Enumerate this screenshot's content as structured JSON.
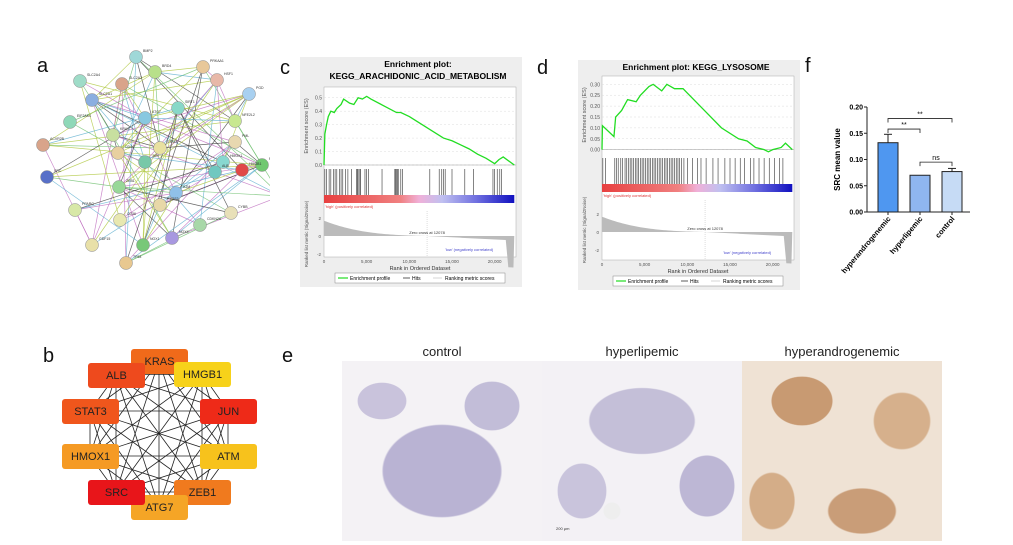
{
  "panel_labels": {
    "a": "a",
    "b": "b",
    "c": "c",
    "d": "d",
    "e": "e",
    "f": "f"
  },
  "network_a": {
    "nodes": [
      {
        "name": "BMP2",
        "color": "#9fd8d8"
      },
      {
        "name": "SLC2A4",
        "color": "#9fdcc8"
      },
      {
        "name": "SLC2A2",
        "color": "#d9a48a"
      },
      {
        "name": "SLC2A1",
        "color": "#8aaee0"
      },
      {
        "name": "EIF2AK4",
        "color": "#8fd8b8"
      },
      {
        "name": "ACVR2B",
        "color": "#d9a48a"
      },
      {
        "name": "KRAS",
        "color": "#c8e0a0"
      },
      {
        "name": "BRD4",
        "color": "#b8e08a"
      },
      {
        "name": "PRKAA1",
        "color": "#e8c89a"
      },
      {
        "name": "HSF1",
        "color": "#e8b8a8"
      },
      {
        "name": "PGD",
        "color": "#a8d0f0"
      },
      {
        "name": "SIRT1",
        "color": "#88d8c8"
      },
      {
        "name": "NFE2L2",
        "color": "#c8e890"
      },
      {
        "name": "PML",
        "color": "#e8d8b0"
      },
      {
        "name": "ATG7",
        "color": "#88c8e0"
      },
      {
        "name": "STAT3",
        "color": "#e8e0a0"
      },
      {
        "name": "HMOX1",
        "color": "#88d8d0"
      },
      {
        "name": "FTL",
        "color": "#70c870"
      },
      {
        "name": "ALOX5",
        "color": "#d8c080"
      },
      {
        "name": "ALB",
        "color": "#70c8c0"
      },
      {
        "name": "HMGB1",
        "color": "#e04848"
      },
      {
        "name": "CD44",
        "color": "#e8d0a0"
      },
      {
        "name": "JUN",
        "color": "#78c8a8"
      },
      {
        "name": "ZEB1",
        "color": "#98d898"
      },
      {
        "name": "SRC",
        "color": "#5870c8"
      },
      {
        "name": "ATM",
        "color": "#90c0e8"
      },
      {
        "name": "CYBB",
        "color": "#e8e0b8"
      },
      {
        "name": "NOX4",
        "color": "#a898e0"
      },
      {
        "name": "NOX1",
        "color": "#78c878"
      },
      {
        "name": "CD36",
        "color": "#e8e8b0"
      },
      {
        "name": "PTGS2",
        "color": "#e8d8a8"
      },
      {
        "name": "CDKN2A",
        "color": "#a8d8a8"
      },
      {
        "name": "GDF15",
        "color": "#e8e0a8"
      },
      {
        "name": "TP53",
        "color": "#e8c890"
      },
      {
        "name": "PPARG",
        "color": "#d8e8a8"
      }
    ]
  },
  "network_b": {
    "nodes": [
      {
        "name": "KRAS",
        "color": "#f06a1a"
      },
      {
        "name": "HMGB1",
        "color": "#f7d21a"
      },
      {
        "name": "JUN",
        "color": "#ee2a18"
      },
      {
        "name": "ATM",
        "color": "#f7c21c"
      },
      {
        "name": "ZEB1",
        "color": "#f07a1e"
      },
      {
        "name": "ATG7",
        "color": "#f5a526"
      },
      {
        "name": "SRC",
        "color": "#e8151a"
      },
      {
        "name": "HMOX1",
        "color": "#f59a24"
      },
      {
        "name": "STAT3",
        "color": "#f0561c"
      },
      {
        "name": "ALB",
        "color": "#ee4a1d"
      }
    ]
  },
  "panel_e": {
    "titles": [
      "control",
      "hyperlipemic",
      "hyperandrogenemic"
    ],
    "scale_bar": "200 μm"
  },
  "chart_data": [
    {
      "type": "line",
      "panel": "c",
      "title_line1": "Enrichment plot:",
      "title_line2": "KEGG_ARACHIDONIC_ACID_METABOLISM",
      "ylabel": "Enrichment score (ES)",
      "ylabel2": "Ranked list metric (Signal2Noise)",
      "xlabel": "Rank in Ordered Dataset",
      "ylim": [
        0,
        0.55
      ],
      "yticks": [
        "0.0",
        "0.1",
        "0.2",
        "0.3",
        "0.4",
        "0.5"
      ],
      "xlim": [
        0,
        22500
      ],
      "xticks": [
        "0",
        "5,000",
        "10,000",
        "15,000",
        "20,000"
      ],
      "metric_yticks": [
        "2",
        "0",
        "-2"
      ],
      "high_label": "'high' (positively correlated)",
      "low_label": "'low' (negatively correlated)",
      "zero_cross": "Zero cross at 12078",
      "legend": [
        "Enrichment profile",
        "Hits",
        "Ranking metric scores"
      ],
      "line_color": "#22dd22",
      "es": [
        [
          0,
          0
        ],
        [
          100,
          0.23
        ],
        [
          300,
          0.3
        ],
        [
          500,
          0.36
        ],
        [
          800,
          0.4
        ],
        [
          1200,
          0.39
        ],
        [
          1500,
          0.42
        ],
        [
          2000,
          0.45
        ],
        [
          2300,
          0.49
        ],
        [
          3000,
          0.46
        ],
        [
          3500,
          0.45
        ],
        [
          4000,
          0.5
        ],
        [
          4500,
          0.49
        ],
        [
          5000,
          0.51
        ],
        [
          5500,
          0.49
        ],
        [
          7000,
          0.44
        ],
        [
          8500,
          0.39
        ],
        [
          9000,
          0.39
        ],
        [
          10000,
          0.36
        ],
        [
          12000,
          0.28
        ],
        [
          14000,
          0.2
        ],
        [
          15000,
          0.18
        ],
        [
          16000,
          0.15
        ],
        [
          17000,
          0.12
        ],
        [
          18000,
          0.08
        ],
        [
          19000,
          0.05
        ],
        [
          20000,
          0.01
        ],
        [
          20500,
          0.04
        ],
        [
          21000,
          0.06
        ],
        [
          22300,
          0
        ]
      ],
      "hits": [
        100,
        300,
        600,
        800,
        1100,
        1300,
        1500,
        1800,
        2000,
        2200,
        2500,
        2800,
        3200,
        3800,
        3900,
        4000,
        4200,
        4300,
        4800,
        5000,
        5200,
        6800,
        8300,
        8400,
        8500,
        8600,
        8700,
        9000,
        9200,
        12400,
        13500,
        13800,
        14000,
        14200,
        15000,
        16500,
        17500,
        19800,
        20000,
        20300,
        20600,
        20800
      ]
    },
    {
      "type": "line",
      "panel": "d",
      "title_line1": "Enrichment plot: KEGG_LYSOSOME",
      "title_line2": "",
      "ylabel": "Enrichment score (ES)",
      "ylabel2": "Ranked list metric (Signal2Noise)",
      "xlabel": "Rank in Ordered Dataset",
      "ylim": [
        -0.02,
        0.32
      ],
      "yticks": [
        "0.00",
        "0.05",
        "0.10",
        "0.15",
        "0.20",
        "0.25",
        "0.30"
      ],
      "xlim": [
        0,
        22500
      ],
      "xticks": [
        "0",
        "5,000",
        "10,000",
        "15,000",
        "20,000"
      ],
      "metric_yticks": [
        "2",
        "0",
        "-2"
      ],
      "high_label": "'high' (positively correlated)",
      "low_label": "'low' (negatively correlated)",
      "zero_cross": "Zero cross at 12078",
      "legend": [
        "Enrichment profile",
        "Hits",
        "Ranking metric scores"
      ],
      "line_color": "#22dd22",
      "es": [
        [
          0,
          0
        ],
        [
          50,
          0.11
        ],
        [
          1400,
          0.06
        ],
        [
          1600,
          0.15
        ],
        [
          2300,
          0.18
        ],
        [
          3000,
          0.23
        ],
        [
          4000,
          0.22
        ],
        [
          4500,
          0.25
        ],
        [
          5500,
          0.29
        ],
        [
          6000,
          0.3
        ],
        [
          7000,
          0.27
        ],
        [
          7600,
          0.3
        ],
        [
          8500,
          0.28
        ],
        [
          9500,
          0.28
        ],
        [
          10000,
          0.26
        ],
        [
          12000,
          0.18
        ],
        [
          14000,
          0.1
        ],
        [
          16000,
          0.05
        ],
        [
          17000,
          0.04
        ],
        [
          18000,
          0.01
        ],
        [
          19000,
          0
        ],
        [
          19500,
          -0.01
        ],
        [
          20000,
          0
        ],
        [
          21000,
          0.01
        ],
        [
          21500,
          0.03
        ],
        [
          22300,
          0
        ]
      ],
      "hits": [
        100,
        400,
        1500,
        1700,
        1900,
        2200,
        2400,
        2700,
        2900,
        3100,
        3300,
        3500,
        3700,
        3900,
        4100,
        4300,
        4500,
        4700,
        4900,
        5100,
        5300,
        5500,
        5700,
        5900,
        6100,
        6300,
        6500,
        6700,
        6900,
        7100,
        7300,
        7500,
        7700,
        7900,
        8100,
        8300,
        8500,
        8700,
        8900,
        9100,
        9300,
        9600,
        10000,
        10600,
        11200,
        11600,
        12200,
        13000,
        13600,
        14400,
        15000,
        15600,
        16200,
        16700,
        17400,
        17800,
        18400,
        19000,
        19600,
        20200,
        20800,
        21200
      ]
    },
    {
      "type": "bar",
      "panel": "f",
      "ylabel": "SRC mean value",
      "ylim": [
        0,
        0.2
      ],
      "yticks": [
        "0.00",
        "0.05",
        "0.10",
        "0.15",
        "0.20"
      ],
      "categories": [
        "hyperandrogenemic",
        "hyperlipemic",
        "control"
      ],
      "values": [
        0.132,
        0.07,
        0.077
      ],
      "errors": [
        0.016,
        0.0,
        0.006
      ],
      "colors": [
        "#4f97f0",
        "#8fb6f0",
        "#c6dbf5"
      ],
      "significance": [
        {
          "pair": [
            0,
            1
          ],
          "label": "**"
        },
        {
          "pair": [
            0,
            2
          ],
          "label": "**"
        },
        {
          "pair": [
            1,
            2
          ],
          "label": "ns"
        }
      ]
    }
  ]
}
